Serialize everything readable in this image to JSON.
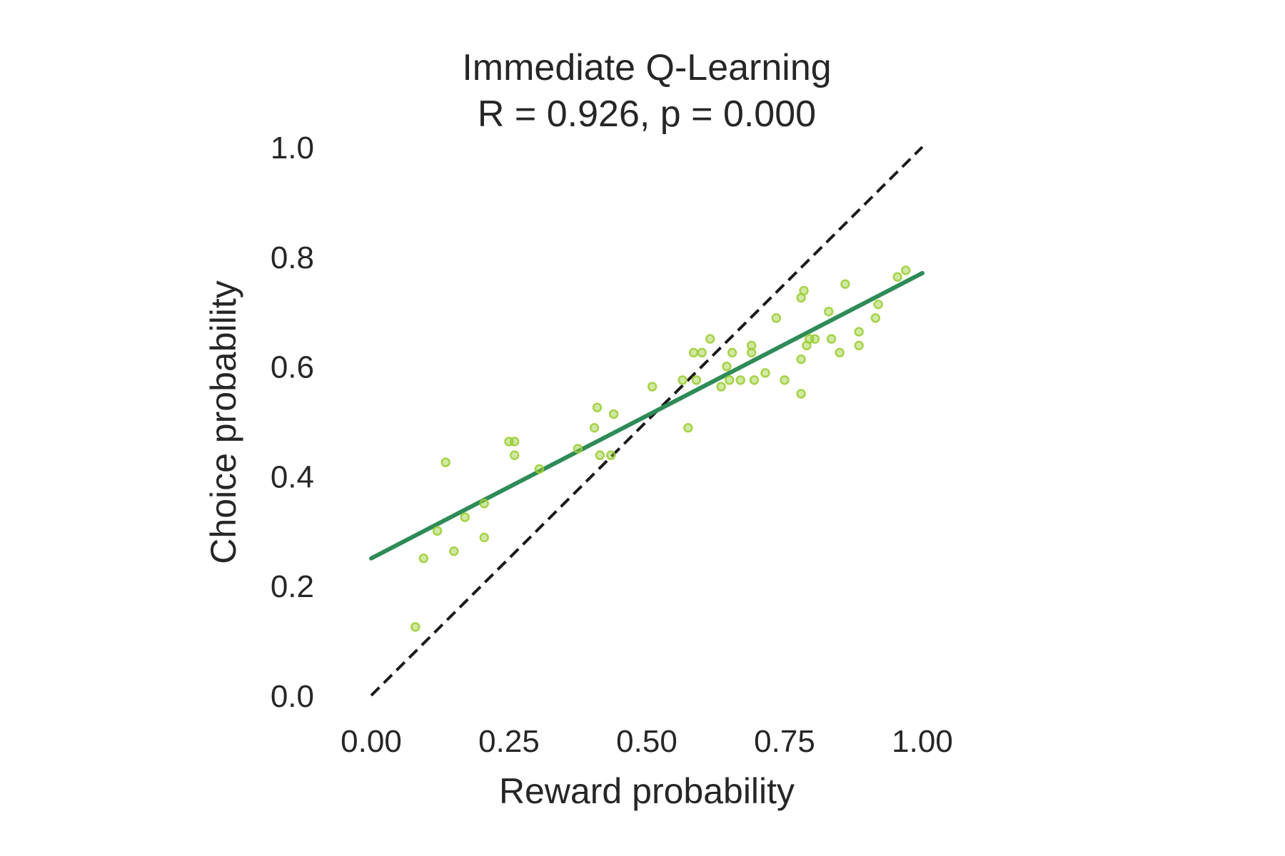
{
  "chart_data": {
    "type": "scatter",
    "title": "Immediate Q-Learning",
    "subtitle": "R = 0.926, p = 0.000",
    "xlabel": "Reward probability",
    "ylabel": "Choice probability",
    "xlim": [
      0.0,
      1.0
    ],
    "ylim": [
      0.0,
      1.0
    ],
    "xticks": [
      "0.00",
      "0.25",
      "0.50",
      "0.75",
      "1.00"
    ],
    "yticks": [
      "0.0",
      "0.2",
      "0.4",
      "0.6",
      "0.8",
      "1.0"
    ],
    "grid": false,
    "legend": "none",
    "colors": {
      "points": "#9acd32",
      "fit_line": "#2e8b57",
      "identity_line": "#1a1a1a"
    },
    "regression_line": {
      "x": [
        0.0,
        1.0
      ],
      "y": [
        0.25,
        0.77
      ]
    },
    "identity_line": {
      "x": [
        0.0,
        1.0
      ],
      "y": [
        0.0,
        1.0
      ],
      "style": "dashed"
    },
    "points": [
      {
        "x": 0.08,
        "y": 0.125
      },
      {
        "x": 0.095,
        "y": 0.25
      },
      {
        "x": 0.12,
        "y": 0.3
      },
      {
        "x": 0.135,
        "y": 0.425
      },
      {
        "x": 0.15,
        "y": 0.263
      },
      {
        "x": 0.17,
        "y": 0.325
      },
      {
        "x": 0.205,
        "y": 0.35
      },
      {
        "x": 0.205,
        "y": 0.288
      },
      {
        "x": 0.25,
        "y": 0.463
      },
      {
        "x": 0.26,
        "y": 0.463
      },
      {
        "x": 0.26,
        "y": 0.438
      },
      {
        "x": 0.305,
        "y": 0.413
      },
      {
        "x": 0.375,
        "y": 0.45
      },
      {
        "x": 0.405,
        "y": 0.488
      },
      {
        "x": 0.41,
        "y": 0.525
      },
      {
        "x": 0.415,
        "y": 0.438
      },
      {
        "x": 0.435,
        "y": 0.438
      },
      {
        "x": 0.44,
        "y": 0.513
      },
      {
        "x": 0.51,
        "y": 0.563
      },
      {
        "x": 0.565,
        "y": 0.575
      },
      {
        "x": 0.575,
        "y": 0.488
      },
      {
        "x": 0.585,
        "y": 0.625
      },
      {
        "x": 0.59,
        "y": 0.575
      },
      {
        "x": 0.6,
        "y": 0.625
      },
      {
        "x": 0.615,
        "y": 0.65
      },
      {
        "x": 0.635,
        "y": 0.563
      },
      {
        "x": 0.645,
        "y": 0.6
      },
      {
        "x": 0.65,
        "y": 0.575
      },
      {
        "x": 0.655,
        "y": 0.625
      },
      {
        "x": 0.67,
        "y": 0.575
      },
      {
        "x": 0.69,
        "y": 0.638
      },
      {
        "x": 0.69,
        "y": 0.625
      },
      {
        "x": 0.695,
        "y": 0.575
      },
      {
        "x": 0.715,
        "y": 0.588
      },
      {
        "x": 0.735,
        "y": 0.688
      },
      {
        "x": 0.75,
        "y": 0.575
      },
      {
        "x": 0.78,
        "y": 0.613
      },
      {
        "x": 0.78,
        "y": 0.55
      },
      {
        "x": 0.78,
        "y": 0.725
      },
      {
        "x": 0.785,
        "y": 0.738
      },
      {
        "x": 0.79,
        "y": 0.638
      },
      {
        "x": 0.795,
        "y": 0.65
      },
      {
        "x": 0.805,
        "y": 0.65
      },
      {
        "x": 0.83,
        "y": 0.7
      },
      {
        "x": 0.835,
        "y": 0.65
      },
      {
        "x": 0.85,
        "y": 0.625
      },
      {
        "x": 0.86,
        "y": 0.75
      },
      {
        "x": 0.885,
        "y": 0.663
      },
      {
        "x": 0.885,
        "y": 0.638
      },
      {
        "x": 0.915,
        "y": 0.688
      },
      {
        "x": 0.92,
        "y": 0.713
      },
      {
        "x": 0.955,
        "y": 0.763
      },
      {
        "x": 0.97,
        "y": 0.775
      }
    ]
  }
}
